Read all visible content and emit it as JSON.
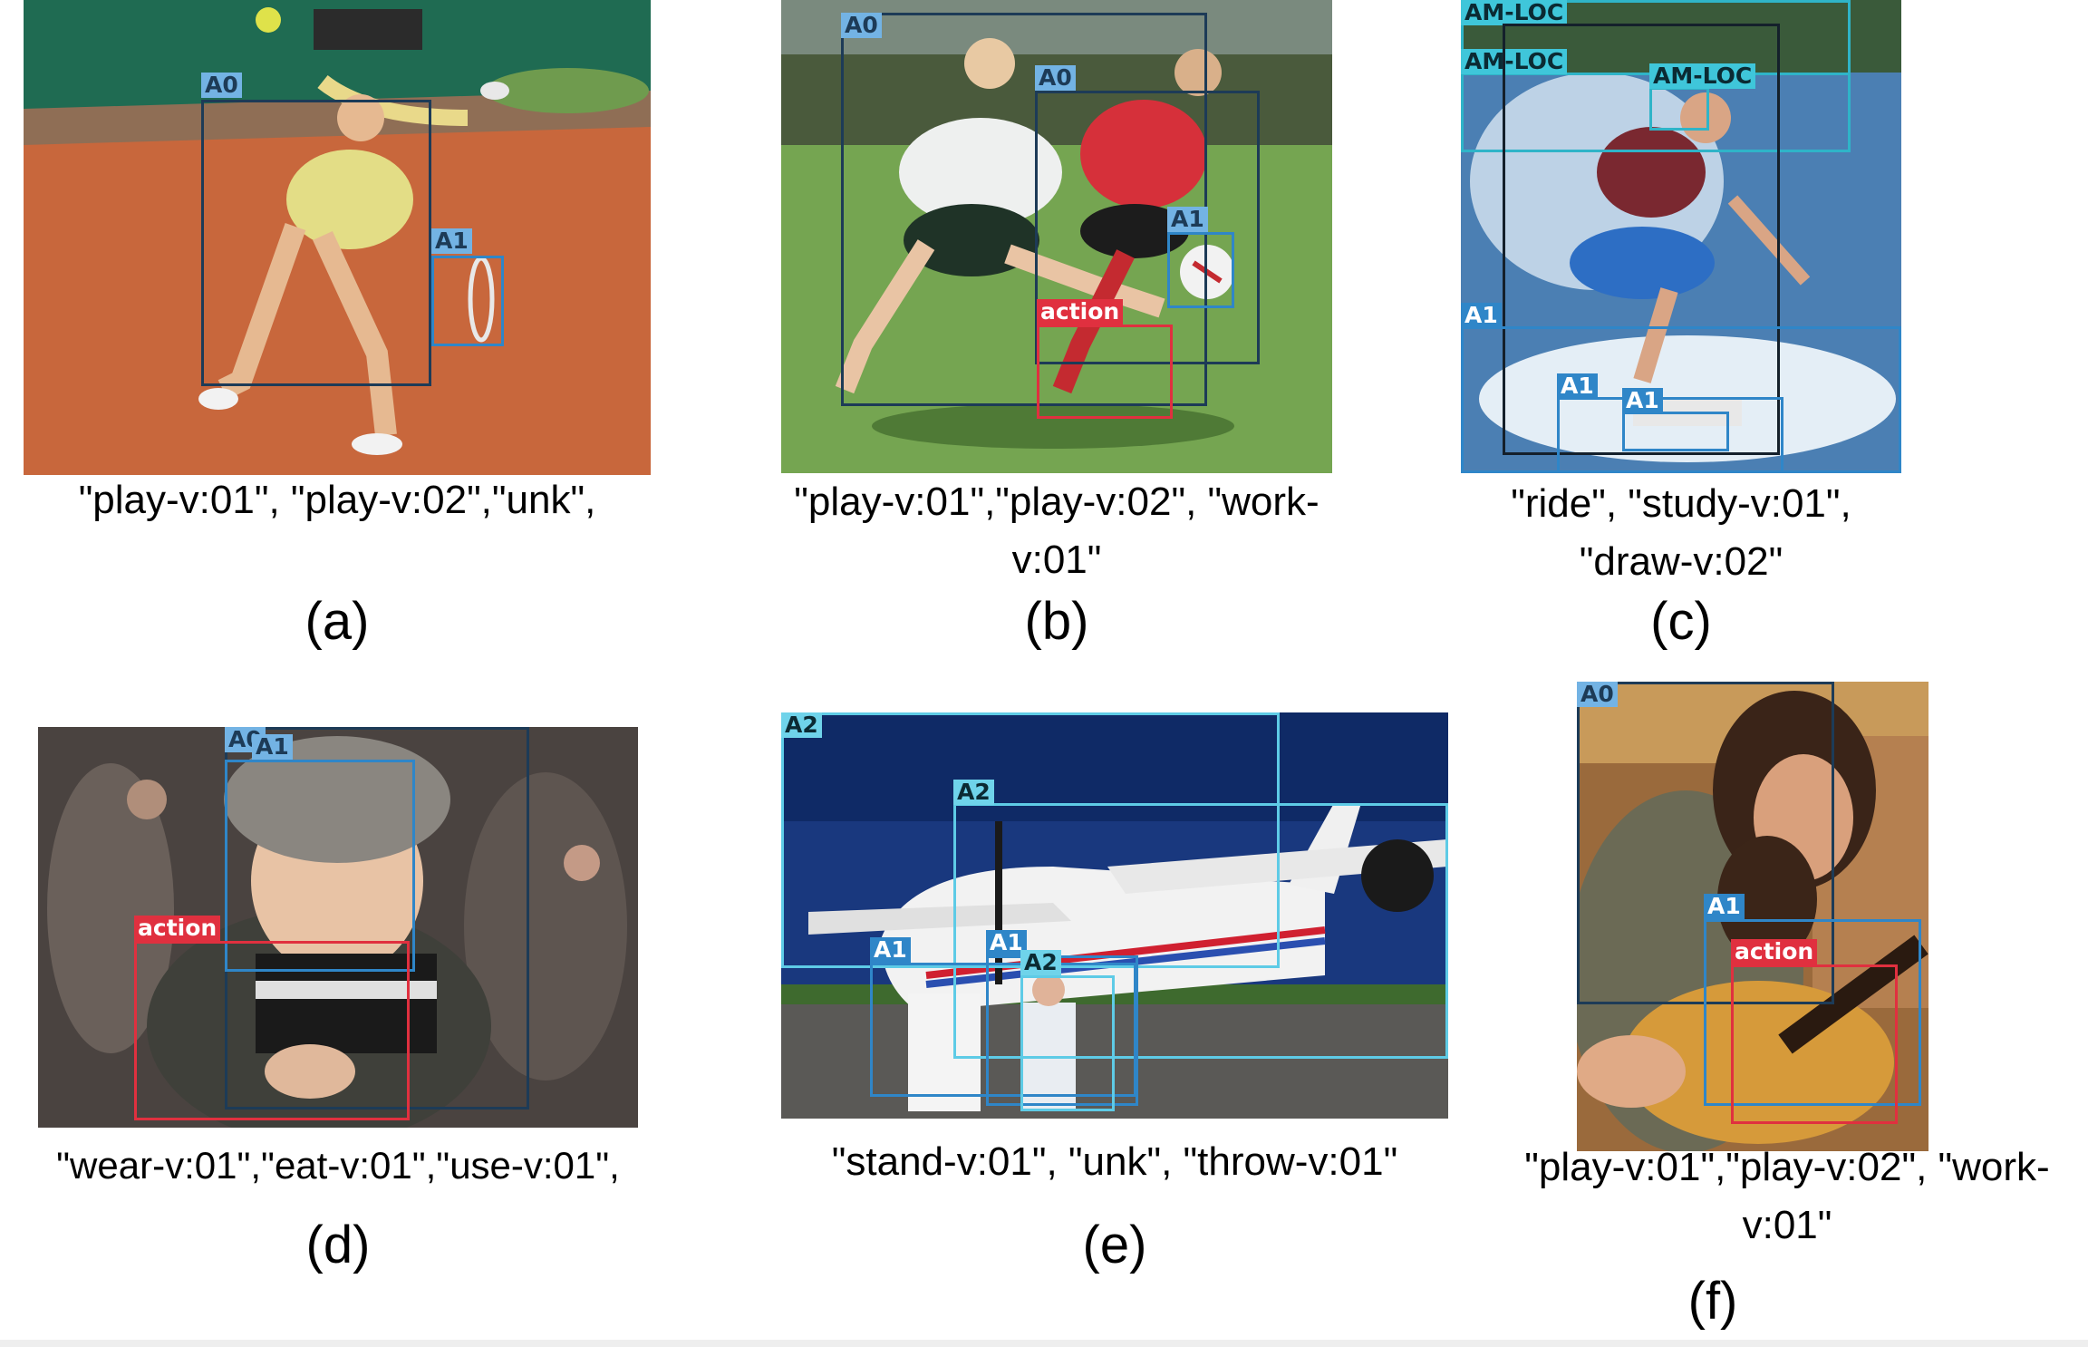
{
  "colors": {
    "A0": "#1d3b57",
    "A1": "#2f86c8",
    "A2": "#5ecbe6",
    "AM-LOC": "#2fb4c8",
    "action": "#e0303f"
  },
  "panels": [
    {
      "letter": "(a)",
      "caption": "\"play-v:01\", \"play-v:02\",\"unk\",",
      "labels": [
        "A0",
        "A1"
      ]
    },
    {
      "letter": "(b)",
      "caption": "\"play-v:01\",\"play-v:02\", \"work-v:01\"",
      "labels": [
        "A0",
        "A0",
        "A1",
        "action"
      ]
    },
    {
      "letter": "(c)",
      "caption": "\"ride\", \"study-v:01\", \"draw-v:02\"",
      "labels": [
        "AM-LOC",
        "AM-LOC",
        "AM-LOC",
        "A1",
        "A1",
        "A1"
      ]
    },
    {
      "letter": "(d)",
      "caption": "\"wear-v:01\",\"eat-v:01\",\"use-v:01\",",
      "labels": [
        "A0",
        "A1",
        "action"
      ]
    },
    {
      "letter": "(e)",
      "caption": "\"stand-v:01\", \"unk\", \"throw-v:01\"",
      "labels": [
        "A2",
        "A2",
        "A1",
        "A1",
        "A2"
      ]
    },
    {
      "letter": "(f)",
      "caption": "\"play-v:01\",\"play-v:02\", \"work-v:01\"",
      "labels": [
        "A0",
        "A1",
        "action"
      ]
    }
  ]
}
